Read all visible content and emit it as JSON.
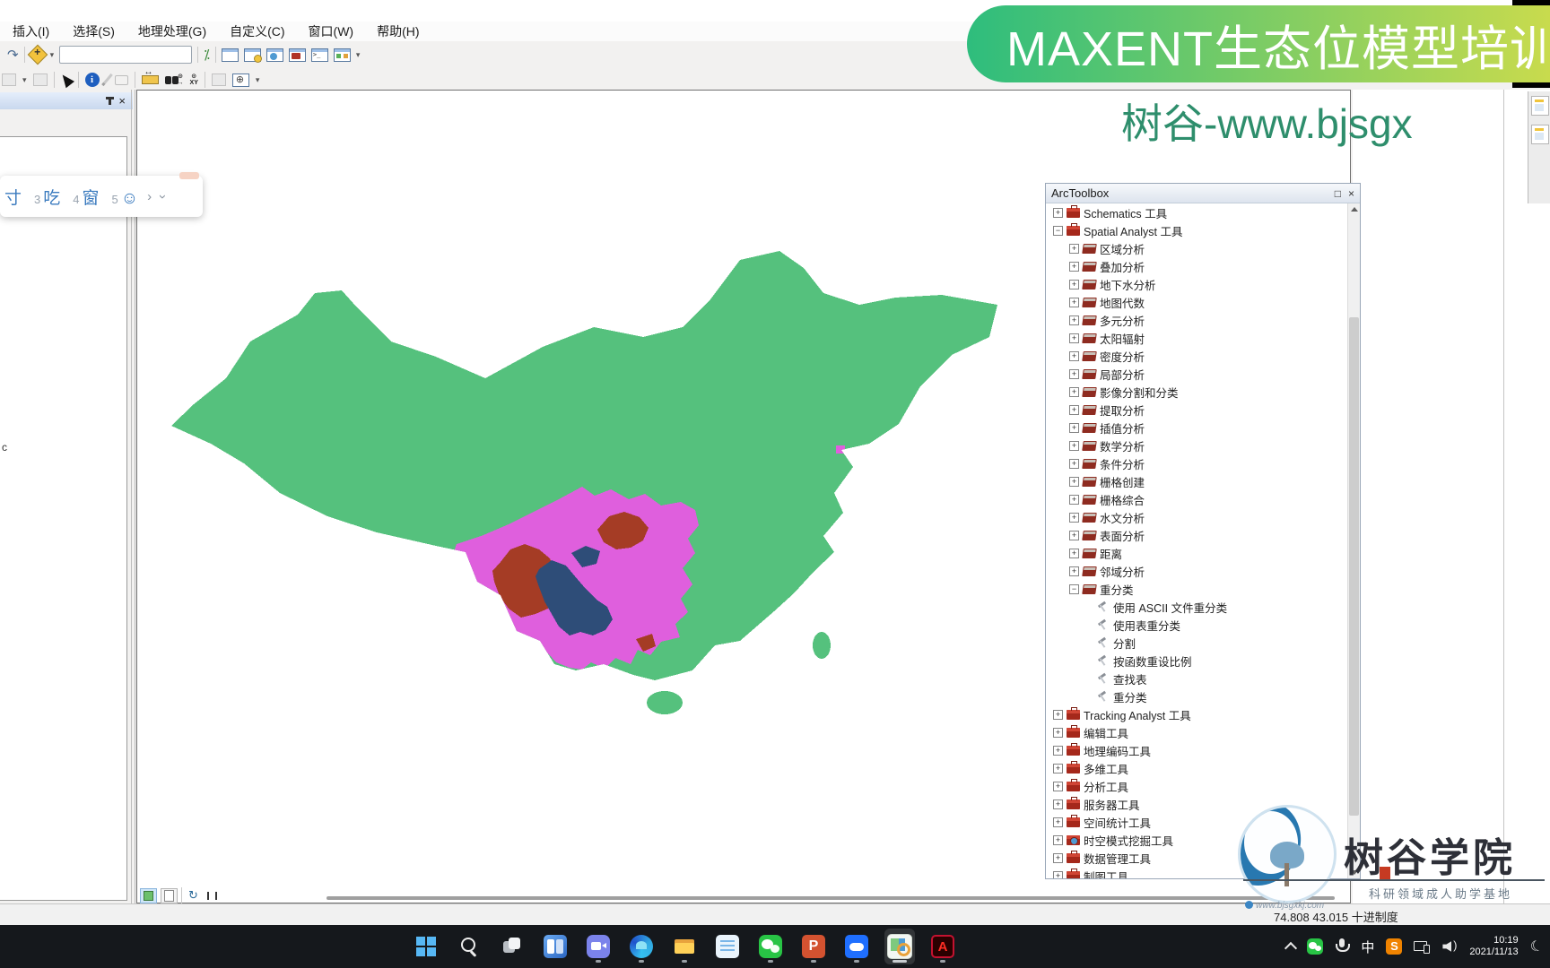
{
  "menubar": {
    "items": [
      "插入(I)",
      "选择(S)",
      "地理处理(G)",
      "自定义(C)",
      "窗口(W)",
      "帮助(H)"
    ]
  },
  "toolbar": {
    "combo_value": ""
  },
  "ime": {
    "candidates": [
      {
        "num": "",
        "text": "寸"
      },
      {
        "num": "3",
        "text": "吃"
      },
      {
        "num": "4",
        "text": "窗"
      },
      {
        "num": "5",
        "text": "☺"
      }
    ],
    "more_arrow": "›",
    "down_arrow": "›"
  },
  "toc": {
    "stray_text": "c"
  },
  "map": {
    "colors": {
      "land": "#55c17d",
      "suit_low": "#df5fdd",
      "suit_mid": "#a53c25",
      "suit_high": "#2e4d78",
      "water": "#ffffff"
    }
  },
  "arctoolbox": {
    "title": "ArcToolbox",
    "restore_glyph": "□",
    "close_glyph": "×",
    "items": [
      {
        "label": "Schematics 工具",
        "level": 0,
        "exp": "plus",
        "icon": "toolbox"
      },
      {
        "label": "Spatial Analyst 工具",
        "level": 0,
        "exp": "minus",
        "icon": "toolbox"
      },
      {
        "label": "区域分析",
        "level": 1,
        "exp": "plus",
        "icon": "toolset"
      },
      {
        "label": "叠加分析",
        "level": 1,
        "exp": "plus",
        "icon": "toolset"
      },
      {
        "label": "地下水分析",
        "level": 1,
        "exp": "plus",
        "icon": "toolset"
      },
      {
        "label": "地图代数",
        "level": 1,
        "exp": "plus",
        "icon": "toolset"
      },
      {
        "label": "多元分析",
        "level": 1,
        "exp": "plus",
        "icon": "toolset"
      },
      {
        "label": "太阳辐射",
        "level": 1,
        "exp": "plus",
        "icon": "toolset"
      },
      {
        "label": "密度分析",
        "level": 1,
        "exp": "plus",
        "icon": "toolset"
      },
      {
        "label": "局部分析",
        "level": 1,
        "exp": "plus",
        "icon": "toolset"
      },
      {
        "label": "影像分割和分类",
        "level": 1,
        "exp": "plus",
        "icon": "toolset"
      },
      {
        "label": "提取分析",
        "level": 1,
        "exp": "plus",
        "icon": "toolset"
      },
      {
        "label": "插值分析",
        "level": 1,
        "exp": "plus",
        "icon": "toolset"
      },
      {
        "label": "数学分析",
        "level": 1,
        "exp": "plus",
        "icon": "toolset"
      },
      {
        "label": "条件分析",
        "level": 1,
        "exp": "plus",
        "icon": "toolset"
      },
      {
        "label": "栅格创建",
        "level": 1,
        "exp": "plus",
        "icon": "toolset"
      },
      {
        "label": "栅格综合",
        "level": 1,
        "exp": "plus",
        "icon": "toolset"
      },
      {
        "label": "水文分析",
        "level": 1,
        "exp": "plus",
        "icon": "toolset"
      },
      {
        "label": "表面分析",
        "level": 1,
        "exp": "plus",
        "icon": "toolset"
      },
      {
        "label": "距离",
        "level": 1,
        "exp": "plus",
        "icon": "toolset"
      },
      {
        "label": "邻域分析",
        "level": 1,
        "exp": "plus",
        "icon": "toolset"
      },
      {
        "label": "重分类",
        "level": 1,
        "exp": "minus",
        "icon": "toolset"
      },
      {
        "label": "使用 ASCII 文件重分类",
        "level": 2,
        "exp": "none",
        "icon": "tool"
      },
      {
        "label": "使用表重分类",
        "level": 2,
        "exp": "none",
        "icon": "tool"
      },
      {
        "label": "分割",
        "level": 2,
        "exp": "none",
        "icon": "tool"
      },
      {
        "label": "按函数重设比例",
        "level": 2,
        "exp": "none",
        "icon": "tool"
      },
      {
        "label": "查找表",
        "level": 2,
        "exp": "none",
        "icon": "tool"
      },
      {
        "label": "重分类",
        "level": 2,
        "exp": "none",
        "icon": "tool"
      },
      {
        "label": "Tracking Analyst 工具",
        "level": 0,
        "exp": "plus",
        "icon": "toolbox"
      },
      {
        "label": "编辑工具",
        "level": 0,
        "exp": "plus",
        "icon": "toolbox"
      },
      {
        "label": "地理编码工具",
        "level": 0,
        "exp": "plus",
        "icon": "toolbox"
      },
      {
        "label": "多维工具",
        "level": 0,
        "exp": "plus",
        "icon": "toolbox"
      },
      {
        "label": "分析工具",
        "level": 0,
        "exp": "plus",
        "icon": "toolbox"
      },
      {
        "label": "服务器工具",
        "level": 0,
        "exp": "plus",
        "icon": "toolbox"
      },
      {
        "label": "空间统计工具",
        "level": 0,
        "exp": "plus",
        "icon": "toolbox"
      },
      {
        "label": "时空模式挖掘工具",
        "level": 0,
        "exp": "plus",
        "icon": "toolbox-globe"
      },
      {
        "label": "数据管理工具",
        "level": 0,
        "exp": "plus",
        "icon": "toolbox"
      },
      {
        "label": "制图工具",
        "level": 0,
        "exp": "plus",
        "icon": "toolbox"
      }
    ]
  },
  "statusbar": {
    "coordinates": "74.808  43.015",
    "units": "十进制度"
  },
  "overlays": {
    "banner": {
      "text": "MAXENT生态位模型培训",
      "gradient_start": "#2ebd7d",
      "gradient_end": "#d3dd4a"
    },
    "site": {
      "text": "树谷-www.bjsgx",
      "color": "#2e8e6c"
    },
    "logo": {
      "name": "树谷学院",
      "tagline": "科研领域成人助学基地",
      "url": "www.bjsgxkj.com"
    }
  },
  "taskbar": {
    "apps": [
      {
        "id": "start",
        "running": false,
        "active": false
      },
      {
        "id": "search",
        "running": false,
        "active": false
      },
      {
        "id": "taskview",
        "running": false,
        "active": false
      },
      {
        "id": "widgets",
        "running": false,
        "active": false
      },
      {
        "id": "chat",
        "running": true,
        "active": false
      },
      {
        "id": "edge",
        "running": true,
        "active": false
      },
      {
        "id": "explorer",
        "running": true,
        "active": false
      },
      {
        "id": "notepad",
        "running": false,
        "active": false
      },
      {
        "id": "wechat",
        "running": true,
        "active": false
      },
      {
        "id": "powerpoint",
        "running": true,
        "active": false,
        "glyph": "P"
      },
      {
        "id": "voov",
        "running": true,
        "active": false
      },
      {
        "id": "arcmap",
        "running": true,
        "active": true
      },
      {
        "id": "acrobat",
        "running": true,
        "active": false,
        "glyph": "A"
      }
    ],
    "tray": {
      "ime_label": "中",
      "sogou_label": "S",
      "time": "10:19",
      "date": "2021/11/13"
    }
  }
}
